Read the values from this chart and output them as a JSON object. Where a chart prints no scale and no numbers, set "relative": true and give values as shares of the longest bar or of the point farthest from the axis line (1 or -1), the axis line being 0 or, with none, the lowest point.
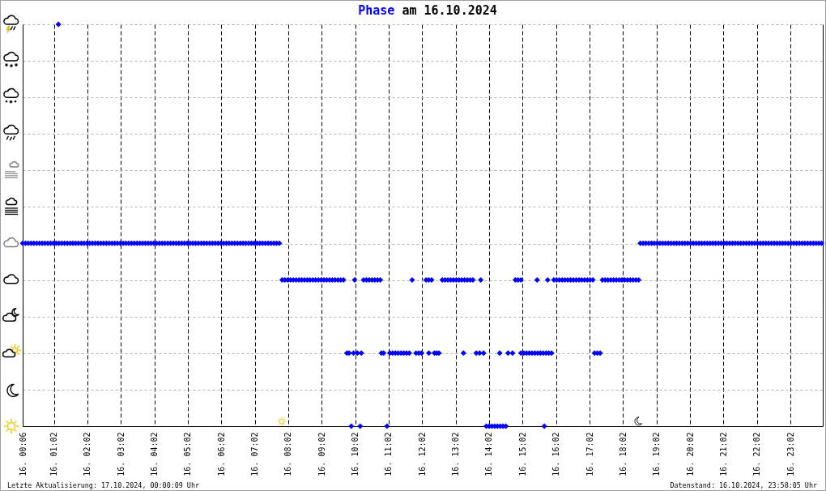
{
  "chart_data": {
    "type": "scatter",
    "title": "Phase am 16.10.2024",
    "annotations": [
      "Letzte Aktualisierung: 17.10.2024, 00:00:09 Uhr",
      "Datenstand: 16.10.2024, 23:58:05 Uhr"
    ],
    "relative": true,
    "grid": true,
    "marker": "diamond",
    "color": "#0000ff",
    "xlim": [
      "2024-10-16T00:06",
      "2024-10-17T00:00"
    ],
    "xticks": [
      {
        "value": "2024-10-16T00:06",
        "label": "16. 00:06"
      },
      {
        "value": "2024-10-16T01:02",
        "label": "16. 01:02"
      },
      {
        "value": "2024-10-16T02:02",
        "label": "16. 02:02"
      },
      {
        "value": "2024-10-16T03:02",
        "label": "16. 03:02"
      },
      {
        "value": "2024-10-16T04:02",
        "label": "16. 04:02"
      },
      {
        "value": "2024-10-16T05:02",
        "label": "16. 05:02"
      },
      {
        "value": "2024-10-16T06:02",
        "label": "16. 06:02"
      },
      {
        "value": "2024-10-16T07:02",
        "label": "16. 07:02"
      },
      {
        "value": "2024-10-16T08:02",
        "label": "16. 08:02"
      },
      {
        "value": "2024-10-16T09:02",
        "label": "16. 09:02"
      },
      {
        "value": "2024-10-16T10:02",
        "label": "16. 10:02"
      },
      {
        "value": "2024-10-16T11:02",
        "label": "16. 11:02"
      },
      {
        "value": "2024-10-16T12:02",
        "label": "16. 12:02"
      },
      {
        "value": "2024-10-16T13:02",
        "label": "16. 13:02"
      },
      {
        "value": "2024-10-16T14:02",
        "label": "16. 14:02"
      },
      {
        "value": "2024-10-16T15:02",
        "label": "16. 15:02"
      },
      {
        "value": "2024-10-16T16:02",
        "label": "16. 16:02"
      },
      {
        "value": "2024-10-16T17:02",
        "label": "16. 17:02"
      },
      {
        "value": "2024-10-16T18:02",
        "label": "16. 18:02"
      },
      {
        "value": "2024-10-16T19:02",
        "label": "16. 19:02"
      },
      {
        "value": "2024-10-16T20:02",
        "label": "16. 20:02"
      },
      {
        "value": "2024-10-16T21:02",
        "label": "16. 21:02"
      },
      {
        "value": "2024-10-16T22:02",
        "label": "16. 22:02"
      },
      {
        "value": "2024-10-16T23:02",
        "label": "16. 23:02"
      }
    ],
    "x": [
      "2024-10-16T00:06",
      "2024-10-16T00:11",
      "2024-10-16T00:16",
      "2024-10-16T00:21",
      "2024-10-16T00:26",
      "2024-10-16T00:31",
      "2024-10-16T00:36",
      "2024-10-16T00:41",
      "2024-10-16T00:46",
      "2024-10-16T00:51",
      "2024-10-16T00:56",
      "2024-10-16T01:01",
      "2024-10-16T01:06",
      "2024-10-16T01:11",
      "2024-10-16T01:16",
      "2024-10-16T01:21",
      "2024-10-16T01:26",
      "2024-10-16T01:31",
      "2024-10-16T01:36",
      "2024-10-16T01:41",
      "2024-10-16T01:46",
      "2024-10-16T01:51",
      "2024-10-16T01:56",
      "2024-10-16T02:01",
      "2024-10-16T02:06",
      "2024-10-16T02:11",
      "2024-10-16T02:16",
      "2024-10-16T02:21",
      "2024-10-16T02:26",
      "2024-10-16T02:31",
      "2024-10-16T02:36",
      "2024-10-16T02:41",
      "2024-10-16T02:46",
      "2024-10-16T02:51",
      "2024-10-16T02:56",
      "2024-10-16T03:01",
      "2024-10-16T03:06",
      "2024-10-16T03:11",
      "2024-10-16T03:16",
      "2024-10-16T03:21",
      "2024-10-16T03:26",
      "2024-10-16T03:31",
      "2024-10-16T03:36",
      "2024-10-16T03:41",
      "2024-10-16T03:46",
      "2024-10-16T03:51",
      "2024-10-16T03:56",
      "2024-10-16T04:01",
      "2024-10-16T04:06",
      "2024-10-16T04:11",
      "2024-10-16T04:16",
      "2024-10-16T04:21",
      "2024-10-16T04:26",
      "2024-10-16T04:31",
      "2024-10-16T04:36",
      "2024-10-16T04:41",
      "2024-10-16T04:46",
      "2024-10-16T04:51",
      "2024-10-16T04:56",
      "2024-10-16T05:01",
      "2024-10-16T05:06",
      "2024-10-16T05:11",
      "2024-10-16T05:16",
      "2024-10-16T05:21",
      "2024-10-16T05:26",
      "2024-10-16T05:31",
      "2024-10-16T05:36",
      "2024-10-16T05:41",
      "2024-10-16T05:46",
      "2024-10-16T05:51",
      "2024-10-16T05:56",
      "2024-10-16T06:01",
      "2024-10-16T06:06",
      "2024-10-16T06:11",
      "2024-10-16T06:16",
      "2024-10-16T06:21",
      "2024-10-16T06:26",
      "2024-10-16T06:31",
      "2024-10-16T06:36",
      "2024-10-16T06:41",
      "2024-10-16T06:46",
      "2024-10-16T06:51",
      "2024-10-16T06:56",
      "2024-10-16T07:01",
      "2024-10-16T07:06",
      "2024-10-16T07:11",
      "2024-10-16T07:16",
      "2024-10-16T07:21",
      "2024-10-16T07:26",
      "2024-10-16T07:31",
      "2024-10-16T07:36",
      "2024-10-16T07:41",
      "2024-10-16T07:46",
      "2024-10-16T01:10",
      "2024-10-16T07:51",
      "2024-10-16T07:56",
      "2024-10-16T08:01",
      "2024-10-16T08:06",
      "2024-10-16T08:11",
      "2024-10-16T08:16",
      "2024-10-16T08:21",
      "2024-10-16T08:26",
      "2024-10-16T08:31",
      "2024-10-16T08:36",
      "2024-10-16T08:41",
      "2024-10-16T08:46",
      "2024-10-16T08:51",
      "2024-10-16T08:56",
      "2024-10-16T09:01",
      "2024-10-16T09:06",
      "2024-10-16T09:11",
      "2024-10-16T09:16",
      "2024-10-16T09:21",
      "2024-10-16T09:26",
      "2024-10-16T09:31",
      "2024-10-16T09:36",
      "2024-10-16T09:41",
      "2024-10-16T10:01",
      "2024-10-16T10:17",
      "2024-10-16T10:22",
      "2024-10-16T10:27",
      "2024-10-16T10:32",
      "2024-10-16T10:37",
      "2024-10-16T10:42",
      "2024-10-16T10:47",
      "2024-10-16T11:44",
      "2024-10-16T12:09",
      "2024-10-16T12:14",
      "2024-10-16T12:19",
      "2024-10-16T12:38",
      "2024-10-16T12:43",
      "2024-10-16T12:48",
      "2024-10-16T12:53",
      "2024-10-16T12:58",
      "2024-10-16T13:03",
      "2024-10-16T13:08",
      "2024-10-16T13:13",
      "2024-10-16T13:18",
      "2024-10-16T13:23",
      "2024-10-16T13:28",
      "2024-10-16T13:33",
      "2024-10-16T13:47",
      "2024-10-16T14:49",
      "2024-10-16T14:54",
      "2024-10-16T14:59",
      "2024-10-16T15:28",
      "2024-10-16T15:47",
      "2024-10-16T15:58",
      "2024-10-16T16:03",
      "2024-10-16T16:08",
      "2024-10-16T16:13",
      "2024-10-16T16:18",
      "2024-10-16T16:23",
      "2024-10-16T16:28",
      "2024-10-16T16:33",
      "2024-10-16T16:38",
      "2024-10-16T16:43",
      "2024-10-16T16:48",
      "2024-10-16T16:53",
      "2024-10-16T16:58",
      "2024-10-16T17:03",
      "2024-10-16T17:08",
      "2024-10-16T17:25",
      "2024-10-16T17:30",
      "2024-10-16T17:35",
      "2024-10-16T17:40",
      "2024-10-16T17:45",
      "2024-10-16T17:50",
      "2024-10-16T17:55",
      "2024-10-16T18:00",
      "2024-10-16T18:05",
      "2024-10-16T18:10",
      "2024-10-16T18:15",
      "2024-10-16T18:20",
      "2024-10-16T18:25",
      "2024-10-16T18:30",
      "2024-10-16T09:47",
      "2024-10-16T09:51",
      "2024-10-16T09:59",
      "2024-10-16T10:06",
      "2024-10-16T10:13",
      "2024-10-16T10:49",
      "2024-10-16T10:53",
      "2024-10-16T11:04",
      "2024-10-16T11:09",
      "2024-10-16T11:14",
      "2024-10-16T11:19",
      "2024-10-16T11:24",
      "2024-10-16T11:29",
      "2024-10-16T11:34",
      "2024-10-16T11:39",
      "2024-10-16T11:51",
      "2024-10-16T11:56",
      "2024-10-16T12:01",
      "2024-10-16T12:14",
      "2024-10-16T12:24",
      "2024-10-16T12:28",
      "2024-10-16T12:32",
      "2024-10-16T13:16",
      "2024-10-16T13:39",
      "2024-10-16T13:45",
      "2024-10-16T13:52",
      "2024-10-16T14:21",
      "2024-10-16T14:36",
      "2024-10-16T14:44",
      "2024-10-16T14:59",
      "2024-10-16T15:04",
      "2024-10-16T15:09",
      "2024-10-16T15:14",
      "2024-10-16T15:19",
      "2024-10-16T15:24",
      "2024-10-16T15:29",
      "2024-10-16T15:34",
      "2024-10-16T15:39",
      "2024-10-16T15:44",
      "2024-10-16T15:49",
      "2024-10-16T15:54",
      "2024-10-16T17:11",
      "2024-10-16T17:16",
      "2024-10-16T17:21",
      "2024-10-16T09:55",
      "2024-10-16T10:11",
      "2024-10-16T10:59",
      "2024-10-16T13:57",
      "2024-10-16T14:02",
      "2024-10-16T14:07",
      "2024-10-16T14:12",
      "2024-10-16T14:17",
      "2024-10-16T14:22",
      "2024-10-16T14:27",
      "2024-10-16T14:32",
      "2024-10-16T15:41",
      "2024-10-16T18:33",
      "2024-10-16T18:38",
      "2024-10-16T18:43",
      "2024-10-16T18:48",
      "2024-10-16T18:53",
      "2024-10-16T18:58",
      "2024-10-16T19:03",
      "2024-10-16T19:08",
      "2024-10-16T19:13",
      "2024-10-16T19:18",
      "2024-10-16T19:23",
      "2024-10-16T19:28",
      "2024-10-16T19:33",
      "2024-10-16T19:38",
      "2024-10-16T19:43",
      "2024-10-16T19:48",
      "2024-10-16T19:53",
      "2024-10-16T19:58",
      "2024-10-16T20:03",
      "2024-10-16T20:08",
      "2024-10-16T20:13",
      "2024-10-16T20:18",
      "2024-10-16T20:23",
      "2024-10-16T20:28",
      "2024-10-16T20:33",
      "2024-10-16T20:38",
      "2024-10-16T20:43",
      "2024-10-16T20:48",
      "2024-10-16T20:53",
      "2024-10-16T20:58",
      "2024-10-16T21:03",
      "2024-10-16T21:08",
      "2024-10-16T21:13",
      "2024-10-16T21:18",
      "2024-10-16T21:23",
      "2024-10-16T21:28",
      "2024-10-16T21:33",
      "2024-10-16T21:38",
      "2024-10-16T21:43",
      "2024-10-16T21:48",
      "2024-10-16T21:53",
      "2024-10-16T21:58",
      "2024-10-16T22:03",
      "2024-10-16T22:08",
      "2024-10-16T22:13",
      "2024-10-16T22:18",
      "2024-10-16T22:23",
      "2024-10-16T22:28",
      "2024-10-16T22:33",
      "2024-10-16T22:38",
      "2024-10-16T22:43",
      "2024-10-16T22:48",
      "2024-10-16T22:53",
      "2024-10-16T22:58",
      "2024-10-16T23:03",
      "2024-10-16T23:08",
      "2024-10-16T23:13",
      "2024-10-16T23:18",
      "2024-10-16T23:23",
      "2024-10-16T23:28",
      "2024-10-16T23:33",
      "2024-10-16T23:38",
      "2024-10-16T23:43",
      "2024-10-16T23:48",
      "2024-10-16T23:53",
      "2024-10-16T23:58"
    ],
    "values": [
      0.455,
      0.455,
      0.455,
      0.455,
      0.455,
      0.455,
      0.455,
      0.455,
      0.455,
      0.455,
      0.455,
      0.455,
      0.455,
      0.455,
      0.455,
      0.455,
      0.455,
      0.455,
      0.455,
      0.455,
      0.455,
      0.455,
      0.455,
      0.455,
      0.455,
      0.455,
      0.455,
      0.455,
      0.455,
      0.455,
      0.455,
      0.455,
      0.455,
      0.455,
      0.455,
      0.455,
      0.455,
      0.455,
      0.455,
      0.455,
      0.455,
      0.455,
      0.455,
      0.455,
      0.455,
      0.455,
      0.455,
      0.455,
      0.455,
      0.455,
      0.455,
      0.455,
      0.455,
      0.455,
      0.455,
      0.455,
      0.455,
      0.455,
      0.455,
      0.455,
      0.455,
      0.455,
      0.455,
      0.455,
      0.455,
      0.455,
      0.455,
      0.455,
      0.455,
      0.455,
      0.455,
      0.455,
      0.455,
      0.455,
      0.455,
      0.455,
      0.455,
      0.455,
      0.455,
      0.455,
      0.455,
      0.455,
      0.455,
      0.455,
      0.455,
      0.455,
      0.455,
      0.455,
      0.455,
      0.455,
      0.455,
      0.455,
      0.455,
      1,
      0.364,
      0.364,
      0.364,
      0.364,
      0.364,
      0.364,
      0.364,
      0.364,
      0.364,
      0.364,
      0.364,
      0.364,
      0.364,
      0.364,
      0.364,
      0.364,
      0.364,
      0.364,
      0.364,
      0.364,
      0.364,
      0.364,
      0.364,
      0.364,
      0.364,
      0.364,
      0.364,
      0.364,
      0.364,
      0.364,
      0.364,
      0.364,
      0.364,
      0.364,
      0.364,
      0.364,
      0.364,
      0.364,
      0.364,
      0.364,
      0.364,
      0.364,
      0.364,
      0.364,
      0.364,
      0.364,
      0.364,
      0.364,
      0.364,
      0.364,
      0.364,
      0.364,
      0.364,
      0.364,
      0.364,
      0.364,
      0.364,
      0.364,
      0.364,
      0.364,
      0.364,
      0.364,
      0.364,
      0.364,
      0.364,
      0.364,
      0.364,
      0.364,
      0.364,
      0.364,
      0.364,
      0.364,
      0.364,
      0.364,
      0.364,
      0.364,
      0.364,
      0.364,
      0.364,
      0.364,
      0.364,
      0.364,
      0.182,
      0.182,
      0.182,
      0.182,
      0.182,
      0.182,
      0.182,
      0.182,
      0.182,
      0.182,
      0.182,
      0.182,
      0.182,
      0.182,
      0.182,
      0.182,
      0.182,
      0.182,
      0.182,
      0.182,
      0.182,
      0.182,
      0.182,
      0.182,
      0.182,
      0.182,
      0.182,
      0.182,
      0.182,
      0.182,
      0.182,
      0.182,
      0.182,
      0.182,
      0.182,
      0.182,
      0.182,
      0.182,
      0.182,
      0.182,
      0.182,
      0.182,
      0.182,
      0.182,
      0,
      0,
      0,
      0,
      0,
      0,
      0,
      0,
      0,
      0,
      0,
      0,
      0.455,
      0.455,
      0.455,
      0.455,
      0.455,
      0.455,
      0.455,
      0.455,
      0.455,
      0.455,
      0.455,
      0.455,
      0.455,
      0.455,
      0.455,
      0.455,
      0.455,
      0.455,
      0.455,
      0.455,
      0.455,
      0.455,
      0.455,
      0.455,
      0.455,
      0.455,
      0.455,
      0.455,
      0.455,
      0.455,
      0.455,
      0.455,
      0.455,
      0.455,
      0.455,
      0.455,
      0.455,
      0.455,
      0.455,
      0.455,
      0.455,
      0.455,
      0.455,
      0.455,
      0.455,
      0.455,
      0.455,
      0.455,
      0.455,
      0.455,
      0.455,
      0.455,
      0.455,
      0.455,
      0.455,
      0.455,
      0.455,
      0.455,
      0.455,
      0.455,
      0.455,
      0.455,
      0.455,
      0.455,
      0.455,
      0.455
    ]
  }
}
